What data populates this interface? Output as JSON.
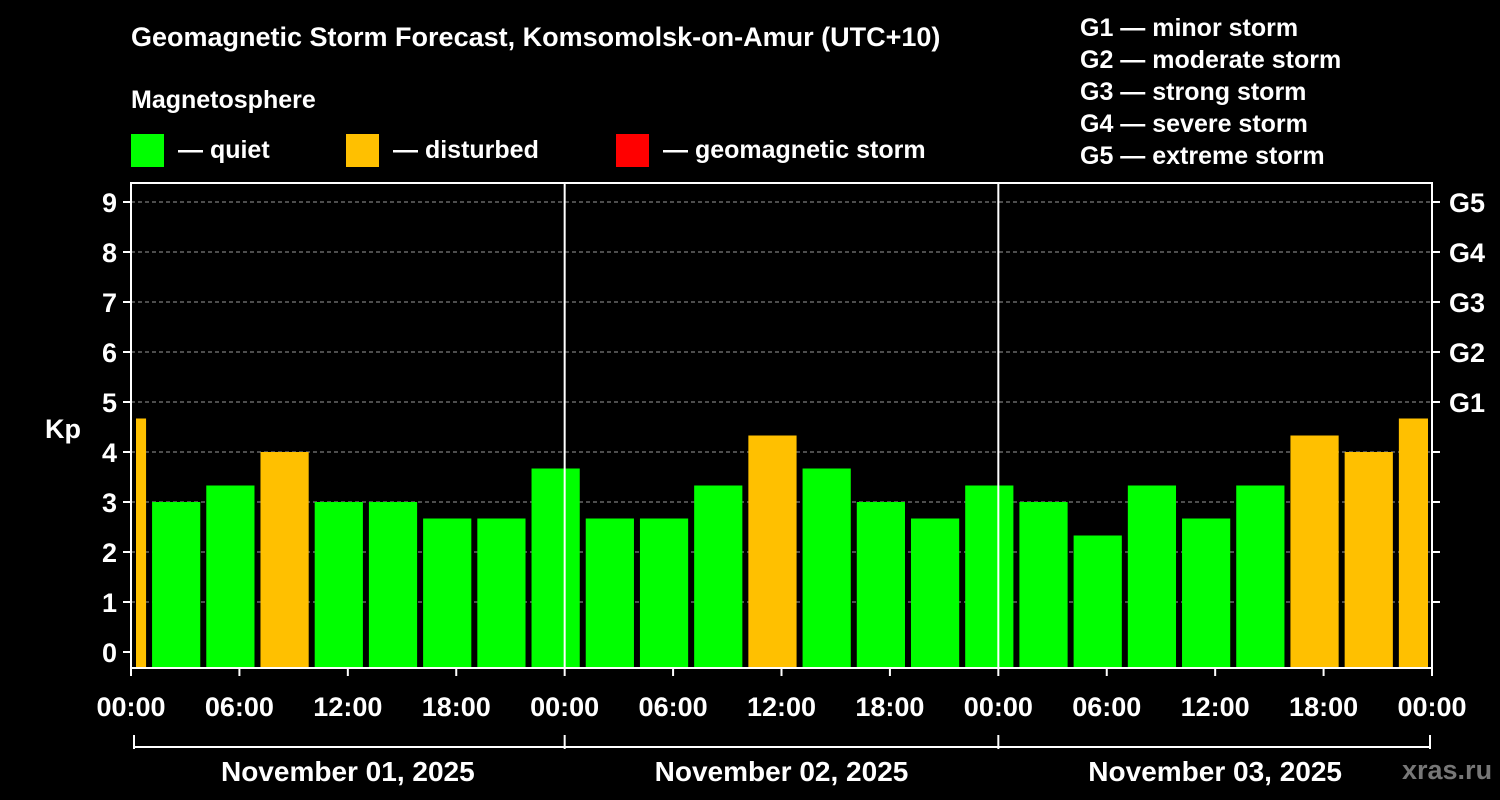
{
  "chart_data": {
    "type": "bar",
    "title": "Geomagnetic Storm Forecast, Komsomolsk-on-Amur (UTC+10)",
    "ylabel": "Kp",
    "ylim": [
      0,
      9
    ],
    "yticks": [
      0,
      1,
      2,
      3,
      4,
      5,
      6,
      7,
      8,
      9
    ],
    "right_ticks": [
      {
        "kp": 5,
        "label": "G1"
      },
      {
        "kp": 6,
        "label": "G2"
      },
      {
        "kp": 7,
        "label": "G3"
      },
      {
        "kp": 8,
        "label": "G4"
      },
      {
        "kp": 9,
        "label": "G5"
      }
    ],
    "x_tick_labels": [
      "00:00",
      "06:00",
      "12:00",
      "18:00",
      "00:00",
      "06:00",
      "12:00",
      "18:00",
      "00:00",
      "06:00",
      "12:00",
      "18:00",
      "00:00"
    ],
    "x_tick_hours": [
      0,
      6,
      12,
      18,
      24,
      30,
      36,
      42,
      48,
      54,
      60,
      66,
      72
    ],
    "days": [
      {
        "label": "November 01, 2025",
        "start_hour": 0,
        "end_hour": 24
      },
      {
        "label": "November 02, 2025",
        "start_hour": 24,
        "end_hour": 48
      },
      {
        "label": "November 03, 2025",
        "start_hour": 48,
        "end_hour": 72
      }
    ],
    "grid": true,
    "bars": [
      {
        "start_hour": 0,
        "end_hour": 1,
        "kp": 4.67,
        "level": "disturbed"
      },
      {
        "start_hour": 1,
        "end_hour": 4,
        "kp": 3.0,
        "level": "quiet"
      },
      {
        "start_hour": 4,
        "end_hour": 7,
        "kp": 3.33,
        "level": "quiet"
      },
      {
        "start_hour": 7,
        "end_hour": 10,
        "kp": 4.0,
        "level": "disturbed"
      },
      {
        "start_hour": 10,
        "end_hour": 13,
        "kp": 3.0,
        "level": "quiet"
      },
      {
        "start_hour": 13,
        "end_hour": 16,
        "kp": 3.0,
        "level": "quiet"
      },
      {
        "start_hour": 16,
        "end_hour": 19,
        "kp": 2.67,
        "level": "quiet"
      },
      {
        "start_hour": 19,
        "end_hour": 22,
        "kp": 2.67,
        "level": "quiet"
      },
      {
        "start_hour": 22,
        "end_hour": 25,
        "kp": 3.67,
        "level": "quiet"
      },
      {
        "start_hour": 25,
        "end_hour": 28,
        "kp": 2.67,
        "level": "quiet"
      },
      {
        "start_hour": 28,
        "end_hour": 31,
        "kp": 2.67,
        "level": "quiet"
      },
      {
        "start_hour": 31,
        "end_hour": 34,
        "kp": 3.33,
        "level": "quiet"
      },
      {
        "start_hour": 34,
        "end_hour": 37,
        "kp": 4.33,
        "level": "disturbed"
      },
      {
        "start_hour": 37,
        "end_hour": 40,
        "kp": 3.67,
        "level": "quiet"
      },
      {
        "start_hour": 40,
        "end_hour": 43,
        "kp": 3.0,
        "level": "quiet"
      },
      {
        "start_hour": 43,
        "end_hour": 46,
        "kp": 2.67,
        "level": "quiet"
      },
      {
        "start_hour": 46,
        "end_hour": 49,
        "kp": 3.33,
        "level": "quiet"
      },
      {
        "start_hour": 49,
        "end_hour": 52,
        "kp": 3.0,
        "level": "quiet"
      },
      {
        "start_hour": 52,
        "end_hour": 55,
        "kp": 2.33,
        "level": "quiet"
      },
      {
        "start_hour": 55,
        "end_hour": 58,
        "kp": 3.33,
        "level": "quiet"
      },
      {
        "start_hour": 58,
        "end_hour": 61,
        "kp": 2.67,
        "level": "quiet"
      },
      {
        "start_hour": 61,
        "end_hour": 64,
        "kp": 3.33,
        "level": "quiet"
      },
      {
        "start_hour": 64,
        "end_hour": 67,
        "kp": 4.33,
        "level": "disturbed"
      },
      {
        "start_hour": 67,
        "end_hour": 70,
        "kp": 4.0,
        "level": "disturbed"
      },
      {
        "start_hour": 70,
        "end_hour": 72,
        "kp": 4.67,
        "level": "disturbed"
      }
    ],
    "level_colors": {
      "quiet": "#00FF00",
      "disturbed": "#FFC000",
      "storm": "#FF0000"
    }
  },
  "magnetosphere": {
    "title": "Magnetosphere",
    "legend": [
      {
        "key": "quiet",
        "label": "— quiet",
        "color": "#00FF00"
      },
      {
        "key": "disturbed",
        "label": "— disturbed",
        "color": "#FFC000"
      },
      {
        "key": "storm",
        "label": "— geomagnetic storm",
        "color": "#FF0000"
      }
    ]
  },
  "storm_scale": [
    "G1 — minor storm",
    "G2 — moderate storm",
    "G3 — strong storm",
    "G4 — severe storm",
    "G5 — extreme storm"
  ],
  "watermark": "xras.ru"
}
